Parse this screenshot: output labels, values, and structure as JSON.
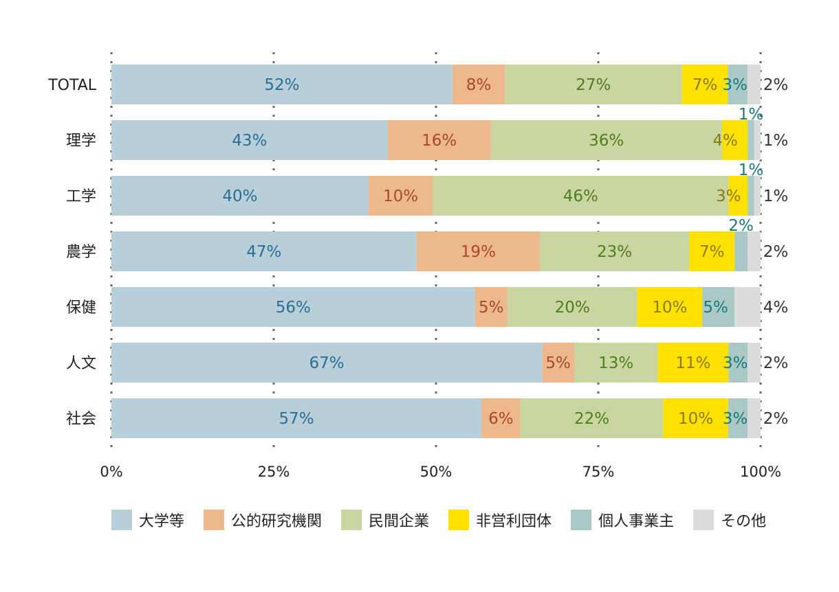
{
  "chart_data": {
    "type": "bar",
    "orientation": "horizontal",
    "stacked": true,
    "categories": [
      "TOTAL",
      "理学",
      "工学",
      "農学",
      "保健",
      "人文",
      "社会"
    ],
    "xlim": [
      0,
      100
    ],
    "x_ticks": [
      "0%",
      "25%",
      "50%",
      "75%",
      "100%"
    ],
    "grid": "vertical dotted",
    "legend_position": "bottom",
    "series": [
      {
        "name": "大学等",
        "color": "#b8cfd9",
        "label_color": "#2a6e96",
        "values": [
          52,
          43,
          40,
          47,
          56,
          67,
          57
        ],
        "labels": [
          "52%",
          "43%",
          "40%",
          "47%",
          "56%",
          "67%",
          "57%"
        ]
      },
      {
        "name": "公的研究機関",
        "color": "#ecb88c",
        "label_color": "#a94a22",
        "values": [
          8,
          16,
          10,
          19,
          5,
          5,
          6
        ],
        "labels": [
          "8%",
          "16%",
          "10%",
          "19%",
          "5%",
          "5%",
          "6%"
        ]
      },
      {
        "name": "民間企業",
        "color": "#cad6a2",
        "label_color": "#4f7d1e",
        "values": [
          27,
          36,
          46,
          23,
          20,
          13,
          22
        ],
        "labels": [
          "27%",
          "36%",
          "46%",
          "23%",
          "20%",
          "13%",
          "22%"
        ]
      },
      {
        "name": "非営利団体",
        "color": "#ffe100",
        "label_color": "#8c7a10",
        "values": [
          7,
          4,
          3,
          7,
          10,
          11,
          10
        ],
        "labels": [
          "7%",
          "4%",
          "3%",
          "7%",
          "10%",
          "11%",
          "10%"
        ]
      },
      {
        "name": "個人事業主",
        "color": "#a9c8c6",
        "label_color": "#1a7a78",
        "values": [
          3,
          1,
          1,
          2,
          5,
          3,
          3
        ],
        "labels": [
          "3%",
          "1%",
          "1%",
          "2%",
          "5%",
          "3%",
          "3%"
        ]
      },
      {
        "name": "その他",
        "color": "#dcdcdc",
        "label_color": "#333333",
        "values": [
          2,
          1,
          1,
          2,
          4,
          2,
          2
        ],
        "labels": [
          "2%",
          "1%",
          "1%",
          "2%",
          "4%",
          "2%",
          "2%"
        ]
      }
    ]
  }
}
